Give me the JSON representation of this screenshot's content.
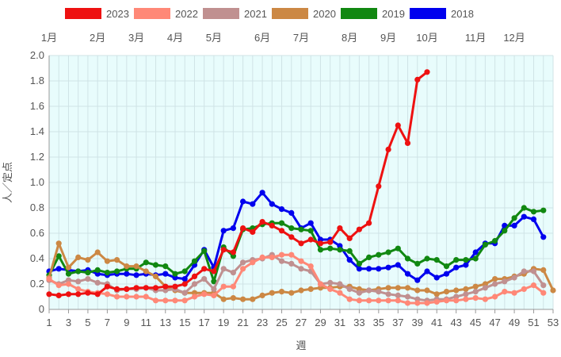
{
  "chart_data": {
    "type": "line",
    "xlabel": "週",
    "ylabel": "人／定点",
    "ylim": [
      0,
      2.0
    ],
    "xlim": [
      1,
      53
    ],
    "grid": true,
    "legend_position": "top",
    "x_ticks": [
      1,
      3,
      5,
      7,
      9,
      11,
      13,
      15,
      17,
      19,
      21,
      23,
      25,
      27,
      29,
      31,
      33,
      35,
      37,
      39,
      41,
      43,
      45,
      47,
      49,
      51,
      53
    ],
    "y_ticks": [
      "0",
      "0.2",
      "0.4",
      "0.6",
      "0.8",
      "1.0",
      "1.2",
      "1.4",
      "1.6",
      "1.8",
      "2.0"
    ],
    "month_labels": [
      {
        "label": "1月",
        "week": 1
      },
      {
        "label": "2月",
        "week": 6
      },
      {
        "label": "3月",
        "week": 10
      },
      {
        "label": "4月",
        "week": 14
      },
      {
        "label": "5月",
        "week": 18
      },
      {
        "label": "6月",
        "week": 23
      },
      {
        "label": "7月",
        "week": 27
      },
      {
        "label": "8月",
        "week": 32
      },
      {
        "label": "9月",
        "week": 36
      },
      {
        "label": "10月",
        "week": 40
      },
      {
        "label": "11月",
        "week": 45
      },
      {
        "label": "12月",
        "week": 49
      }
    ],
    "series": [
      {
        "name": "2023",
        "color": "#ee1111",
        "values": [
          0.12,
          0.11,
          0.12,
          0.12,
          0.13,
          0.12,
          0.18,
          0.16,
          0.16,
          0.17,
          0.17,
          0.17,
          0.18,
          0.18,
          0.2,
          0.26,
          0.32,
          0.3,
          0.47,
          0.45,
          0.64,
          0.61,
          0.69,
          0.66,
          0.62,
          0.57,
          0.52,
          0.55,
          0.52,
          0.53,
          0.64,
          0.56,
          0.63,
          0.68,
          0.97,
          1.26,
          1.45,
          1.31,
          1.81,
          1.87
        ]
      },
      {
        "name": "2022",
        "color": "#ff8877",
        "values": [
          0.24,
          0.19,
          0.2,
          0.16,
          0.14,
          0.13,
          0.12,
          0.1,
          0.1,
          0.1,
          0.1,
          0.07,
          0.07,
          0.07,
          0.07,
          0.1,
          0.12,
          0.11,
          0.18,
          0.18,
          0.32,
          0.37,
          0.41,
          0.41,
          0.43,
          0.43,
          0.38,
          0.34,
          0.2,
          0.16,
          0.13,
          0.08,
          0.07,
          0.07,
          0.07,
          0.07,
          0.07,
          0.05,
          0.05,
          0.05,
          0.06,
          0.07,
          0.07,
          0.08,
          0.09,
          0.08,
          0.1,
          0.14,
          0.13,
          0.16,
          0.19,
          0.13
        ]
      },
      {
        "name": "2021",
        "color": "#c09090",
        "values": [
          0.23,
          0.2,
          0.23,
          0.22,
          0.24,
          0.21,
          0.2,
          0.15,
          0.16,
          0.16,
          0.17,
          0.15,
          0.15,
          0.16,
          0.13,
          0.2,
          0.24,
          0.16,
          0.32,
          0.29,
          0.37,
          0.39,
          0.4,
          0.43,
          0.38,
          0.36,
          0.32,
          0.3,
          0.2,
          0.21,
          0.2,
          0.16,
          0.13,
          0.15,
          0.14,
          0.12,
          0.11,
          0.1,
          0.08,
          0.07,
          0.08,
          0.08,
          0.1,
          0.12,
          0.14,
          0.17,
          0.2,
          0.22,
          0.25,
          0.3,
          0.3,
          0.19
        ]
      },
      {
        "name": "2020",
        "color": "#cc8844",
        "values": [
          0.25,
          0.52,
          0.33,
          0.41,
          0.39,
          0.45,
          0.38,
          0.39,
          0.34,
          0.34,
          0.3,
          0.26,
          0.18,
          0.15,
          0.13,
          0.13,
          0.13,
          0.13,
          0.08,
          0.09,
          0.08,
          0.08,
          0.11,
          0.13,
          0.14,
          0.13,
          0.15,
          0.16,
          0.17,
          0.17,
          0.18,
          0.18,
          0.16,
          0.15,
          0.16,
          0.17,
          0.17,
          0.17,
          0.15,
          0.15,
          0.12,
          0.14,
          0.15,
          0.16,
          0.18,
          0.2,
          0.24,
          0.24,
          0.26,
          0.28,
          0.32,
          0.31,
          0.15
        ]
      },
      {
        "name": "2019",
        "color": "#118811",
        "values": [
          0.27,
          0.42,
          0.28,
          0.3,
          0.29,
          0.31,
          0.29,
          0.3,
          0.32,
          0.32,
          0.37,
          0.35,
          0.34,
          0.28,
          0.3,
          0.38,
          0.46,
          0.22,
          0.49,
          0.42,
          0.63,
          0.64,
          0.67,
          0.68,
          0.68,
          0.64,
          0.63,
          0.62,
          0.47,
          0.48,
          0.47,
          0.46,
          0.36,
          0.41,
          0.43,
          0.45,
          0.48,
          0.4,
          0.36,
          0.4,
          0.39,
          0.34,
          0.39,
          0.39,
          0.4,
          0.51,
          0.54,
          0.62,
          0.72,
          0.8,
          0.77,
          0.78
        ]
      },
      {
        "name": "2018",
        "color": "#0000ee",
        "values": [
          0.3,
          0.32,
          0.31,
          0.3,
          0.31,
          0.28,
          0.27,
          0.28,
          0.28,
          0.27,
          0.28,
          0.27,
          0.28,
          0.25,
          0.24,
          0.35,
          0.47,
          0.33,
          0.62,
          0.64,
          0.85,
          0.83,
          0.92,
          0.83,
          0.79,
          0.76,
          0.64,
          0.68,
          0.55,
          0.55,
          0.5,
          0.39,
          0.32,
          0.32,
          0.32,
          0.33,
          0.35,
          0.28,
          0.23,
          0.3,
          0.25,
          0.28,
          0.33,
          0.35,
          0.45,
          0.52,
          0.52,
          0.66,
          0.66,
          0.73,
          0.71,
          0.57
        ]
      }
    ]
  }
}
